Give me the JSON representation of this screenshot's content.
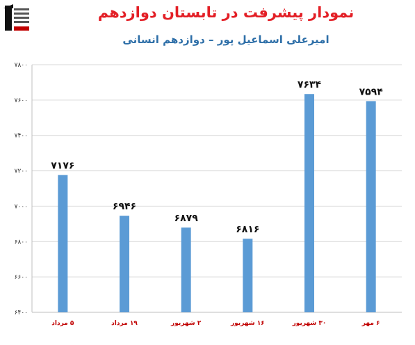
{
  "header": {
    "title": "نمودار پیشرفت در تابستان دوازدهم",
    "subtitle": "امیرعلی اسماعیل پور – دوازدهم انسانی"
  },
  "colors": {
    "bar": "#5b9bd5",
    "title": "#e31f26",
    "subtitle": "#2e6fa8",
    "grid": "#d9d9d9",
    "category_label": "#c00000"
  },
  "chart_data": {
    "type": "bar",
    "title": "نمودار پیشرفت در تابستان دوازدهم",
    "subtitle": "امیرعلی اسماعیل پور – دوازدهم انسانی",
    "categories": [
      "۵ مرداد",
      "۱۹ مرداد",
      "۲ شهریور",
      "۱۶ شهریور",
      "۳۰ شهریور",
      "۶ مهر"
    ],
    "values": [
      7176,
      6946,
      6879,
      6816,
      7634,
      7594
    ],
    "value_labels": [
      "۷۱۷۶",
      "۶۹۴۶",
      "۶۸۷۹",
      "۶۸۱۶",
      "۷۶۳۴",
      "۷۵۹۴"
    ],
    "ylim": [
      6400,
      7800
    ],
    "yticks": [
      6400,
      6600,
      6800,
      7000,
      7200,
      7400,
      7600,
      7800
    ],
    "ytick_labels": [
      "۶۴۰۰",
      "۶۶۰۰",
      "۶۸۰۰",
      "۷۰۰۰",
      "۷۲۰۰",
      "۷۴۰۰",
      "۷۶۰۰",
      "۷۸۰۰"
    ],
    "grid": true,
    "legend": "none"
  }
}
